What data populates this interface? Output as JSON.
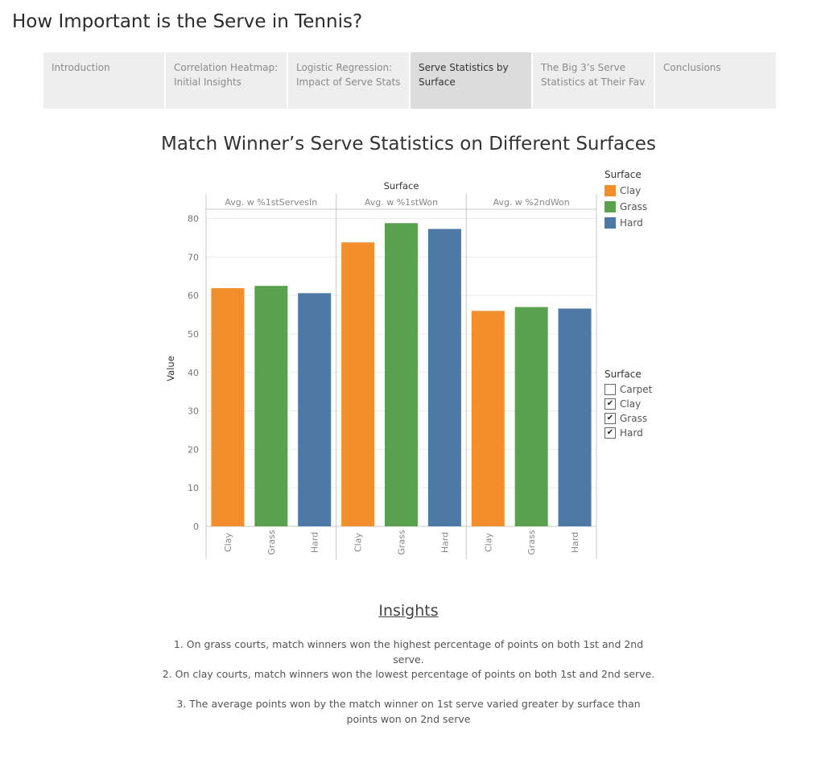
{
  "story": {
    "title": "How Important is the Serve in Tennis?",
    "tabs": [
      {
        "label": "Introduction",
        "active": false
      },
      {
        "label": "Correlation Heatmap: Initial Insights",
        "line1": "Correlation Heatmap:",
        "line2": "Initial Insights",
        "active": false
      },
      {
        "label": "Logistic Regression: Impact of Serve Stats..",
        "line1": "Logistic Regression:",
        "line2": "Impact of Serve Stats..",
        "active": false
      },
      {
        "label": "Serve Statistics by Surface",
        "line1": "Serve Statistics by",
        "line2": "Surface",
        "active": true
      },
      {
        "label": "The Big 3's Serve Statistics at Their Fav..",
        "line1": "The Big 3’s Serve",
        "line2": "Statistics at Their Fav..",
        "active": false
      },
      {
        "label": "Conclusions",
        "active": false
      }
    ]
  },
  "legend": {
    "title": "Surface",
    "items": [
      {
        "label": "Clay",
        "color": "#f28e2b"
      },
      {
        "label": "Grass",
        "color": "#59a14f"
      },
      {
        "label": "Hard",
        "color": "#4e79a7"
      }
    ]
  },
  "filter": {
    "title": "Surface",
    "items": [
      {
        "label": "Carpet",
        "checked": false,
        "mark": ""
      },
      {
        "label": "Clay",
        "checked": true,
        "mark": "✔"
      },
      {
        "label": "Grass",
        "checked": true,
        "mark": "✔"
      },
      {
        "label": "Hard",
        "checked": true,
        "mark": "✔"
      }
    ]
  },
  "chart_data": {
    "type": "bar",
    "title": "Match Winner’s Serve Statistics on Different Surfaces",
    "column_header": "Surface",
    "ylabel": "Value",
    "ylim": [
      0,
      82
    ],
    "yticks": [
      0,
      10,
      20,
      30,
      40,
      50,
      60,
      70,
      80
    ],
    "grid": true,
    "panels": [
      {
        "name": "Avg. w %1stServesIn",
        "categories": [
          "Clay",
          "Grass",
          "Hard"
        ],
        "values": [
          61.9,
          62.5,
          60.6
        ]
      },
      {
        "name": "Avg. w %1stWon",
        "categories": [
          "Clay",
          "Grass",
          "Hard"
        ],
        "values": [
          73.8,
          78.8,
          77.3
        ]
      },
      {
        "name": "Avg. w %2ndWon",
        "categories": [
          "Clay",
          "Grass",
          "Hard"
        ],
        "values": [
          56.0,
          57.0,
          56.6
        ]
      }
    ],
    "colors": {
      "Clay": "#f28e2b",
      "Grass": "#59a14f",
      "Hard": "#4e79a7"
    }
  },
  "insights": {
    "title": "Insights",
    "items": [
      "1. On grass courts, match winners won the highest percentage of points on both 1st and 2nd serve.",
      "2.  On clay courts, match winners won the lowest percentage of points on both 1st and 2nd serve.",
      "3. The average points won by the match winner on 1st serve varied greater by surface than points won on 2nd serve"
    ]
  }
}
